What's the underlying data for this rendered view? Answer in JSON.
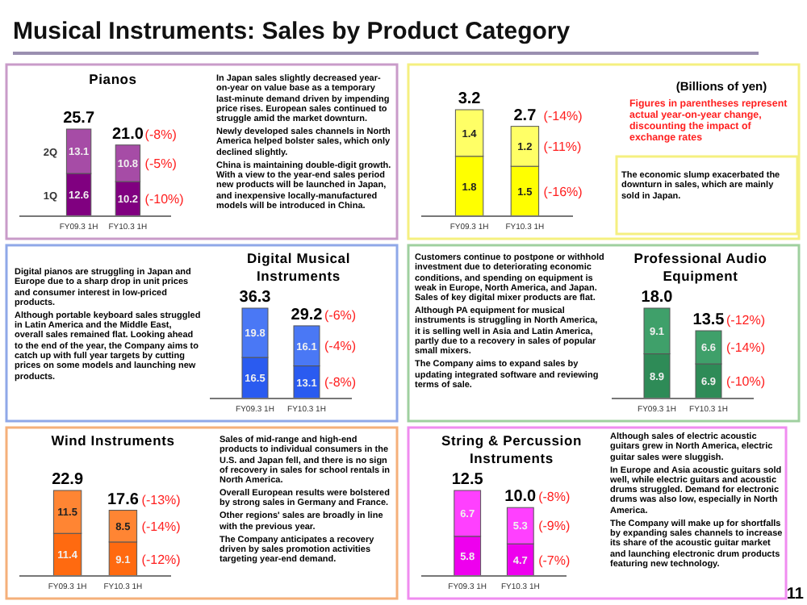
{
  "chart_data": [
    {
      "type": "other",
      "title": "Musical Instruments: Sales by Product Category",
      "annotations": [
        "(Billions of yen)",
        "Figures in parentheses represent actual year-on-year change, discounting the impact of exchange rates",
        "11"
      ]
    },
    {
      "type": "bar",
      "stacked": true,
      "title": "Pianos",
      "categories": [
        "FY09.3 1H",
        "FY10.3 1H"
      ],
      "series": [
        {
          "name": "1Q",
          "color": "#800080",
          "values": [
            12.6,
            10.2
          ]
        },
        {
          "name": "2Q",
          "color": "#a64ca6",
          "values": [
            13.1,
            10.8
          ]
        }
      ],
      "data_labels": true,
      "totals": [
        "25.7",
        "21.0"
      ],
      "annotations": [
        {
          "text": "(-8%)",
          "x": "FY10.3 1H",
          "y": 21.0
        },
        "(-5%)",
        "(-10%)",
        "In Japan sales slightly decreased year-on-year on value base as a temporary last-minute demand driven by impending price rises. European sales continued to struggle amid the market downturn.",
        "Newly developed sales channels in North America helped bolster sales, which only declined slightly.",
        "China is maintaining double-digit growth. With a view to the year-end sales period new products will be launched in Japan, and inexpensive locally-manufactured models will be introduced in China."
      ]
    },
    {
      "type": "bar",
      "stacked": true,
      "categories": [
        "FY09.3 1H",
        "FY10.3 1H"
      ],
      "series": [
        {
          "color": "#ffff00",
          "values": [
            1.8,
            1.5
          ]
        },
        {
          "color": "#ffff66",
          "values": [
            1.4,
            1.2
          ]
        }
      ],
      "data_labels": true,
      "totals": [
        "3.2",
        "2.7"
      ],
      "annotations": [
        {
          "text": "(-14%)",
          "x": "FY10.3 1H",
          "y": 2.7
        },
        "(-11%)",
        "(-16%)",
        "The economic slump exacerbated the downturn in sales, which are mainly sold in Japan."
      ]
    },
    {
      "type": "bar",
      "stacked": true,
      "title": "Digital Musical Instruments",
      "categories": [
        "FY09.3 1H",
        "FY10.3 1H"
      ],
      "series": [
        {
          "color": "#2a5bf0",
          "values": [
            16.5,
            13.1
          ]
        },
        {
          "color": "#4a78f5",
          "values": [
            19.8,
            16.1
          ]
        }
      ],
      "data_labels": true,
      "totals": [
        "36.3",
        "29.2"
      ],
      "annotations": [
        {
          "text": "(-6%)",
          "x": "FY10.3 1H",
          "y": 29.2
        },
        "(-4%)",
        "(-8%)",
        "Digital pianos are struggling in Japan and Europe due to a sharp drop in unit prices and consumer interest in low-priced products.",
        "Although portable keyboard sales struggled in Latin America and the Middle East, overall sales remained flat. Looking ahead to the end of the year, the Company aims to catch up with full year targets by cutting prices on some models and launching new products."
      ]
    },
    {
      "type": "bar",
      "stacked": true,
      "title": "Professional Audio Equipment",
      "categories": [
        "FY09.3 1H",
        "FY10.3 1H"
      ],
      "series": [
        {
          "color": "#2e8b57",
          "values": [
            8.9,
            6.9
          ]
        },
        {
          "color": "#3fa06a",
          "values": [
            9.1,
            6.6
          ]
        }
      ],
      "data_labels": true,
      "totals": [
        "18.0",
        "13.5"
      ],
      "annotations": [
        {
          "text": "(-12%)",
          "x": "FY10.3 1H",
          "y": 13.5
        },
        "(-14%)",
        "(-10%)",
        "Customers continue to postpone or withhold investment due to deteriorating economic conditions, and spending on equipment is weak in Europe, North America, and Japan. Sales of key digital mixer products are flat.",
        "Although PA equipment for musical instruments is struggling in North America, it is selling well in Asia and Latin America, partly due to a recovery in sales of popular small mixers.",
        "The Company aims to expand sales by updating integrated software and reviewing terms of sale."
      ]
    },
    {
      "type": "bar",
      "stacked": true,
      "title": "Wind Instruments",
      "categories": [
        "FY09.3 1H",
        "FY10.3 1H"
      ],
      "series": [
        {
          "color": "#ff6a10",
          "values": [
            11.4,
            9.1
          ]
        },
        {
          "color": "#ff8533",
          "values": [
            11.5,
            8.5
          ]
        }
      ],
      "data_labels": true,
      "totals": [
        "22.9",
        "17.6"
      ],
      "annotations": [
        {
          "text": "(-13%)",
          "x": "FY10.3 1H",
          "y": 17.6
        },
        "(-14%)",
        "(-12%)",
        "Sales of mid-range and high-end products to individual consumers in the U.S. and Japan fell, and there is no sign of recovery in sales for school rentals in North America.",
        "Overall European results were bolstered by strong sales in Germany and France.",
        "Other regions' sales are broadly in line with the previous year.",
        "The Company anticipates a recovery driven by sales promotion activities targeting year-end demand."
      ]
    },
    {
      "type": "bar",
      "stacked": true,
      "title": "String & Percussion Instruments",
      "categories": [
        "FY09.3 1H",
        "FY10.3 1H"
      ],
      "series": [
        {
          "color": "#ee00ee",
          "values": [
            5.8,
            4.7
          ]
        },
        {
          "color": "#ff40ff",
          "values": [
            6.7,
            5.3
          ]
        }
      ],
      "data_labels": true,
      "totals": [
        "12.5",
        "10.0"
      ],
      "annotations": [
        {
          "text": "(-8%)",
          "x": "FY10.3 1H",
          "y": 10.0
        },
        "(-9%)",
        "(-7%)",
        "Although sales of electric acoustic guitars grew in North America, electric guitar sales were sluggish.",
        "In Europe and Asia acoustic guitars sold well, while electric guitars and acoustic drums struggled. Demand for electronic drums was also low, especially in North America.",
        "The Company will make up for shortfalls by expanding sales channels to increase its share of the acoustic guitar market and launching electronic drum products featuring new technology."
      ]
    }
  ]
}
